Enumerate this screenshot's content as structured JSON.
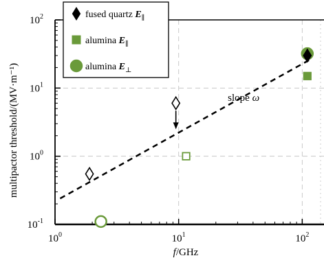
{
  "chart_data": {
    "type": "scatter",
    "x_scale": "log",
    "y_scale": "log",
    "xlim": [
      1,
      150
    ],
    "ylim": [
      0.1,
      100
    ],
    "xlabel": "f/GHz",
    "ylabel": "multipactor threshold/(MV·m⁻¹)",
    "x_ticks": [
      {
        "value": 1,
        "base": "10",
        "exp": "0"
      },
      {
        "value": 10,
        "base": "10",
        "exp": "1"
      },
      {
        "value": 100,
        "base": "10",
        "exp": "2"
      }
    ],
    "y_ticks": [
      {
        "value": 0.1,
        "base": "10",
        "exp": "-1"
      },
      {
        "value": 1,
        "base": "10",
        "exp": "0"
      },
      {
        "value": 10,
        "base": "10",
        "exp": "1"
      },
      {
        "value": 100,
        "base": "10",
        "exp": "2"
      }
    ],
    "grid": true,
    "legend_position": "top-left",
    "legend": [
      {
        "marker": "diamond",
        "color": "#000000",
        "text": "fused quartz ",
        "sym": "E",
        "sub": "∥"
      },
      {
        "marker": "square",
        "color": "#6a9a3a",
        "text": "alumina ",
        "sym": "E",
        "sub": "∥"
      },
      {
        "marker": "circle",
        "color": "#6a9a3a",
        "text": "alumina ",
        "sym": "E",
        "sub": "⊥"
      }
    ],
    "series": [
      {
        "marker": "diamond",
        "color": "#000000",
        "points": [
          {
            "x": 1.9,
            "y": 0.55,
            "filled": false
          },
          {
            "x": 9.5,
            "y": 6.0,
            "filled": false,
            "arrow_down": true
          },
          {
            "x": 110,
            "y": 30,
            "filled": true
          }
        ]
      },
      {
        "marker": "square",
        "color": "#6a9a3a",
        "points": [
          {
            "x": 11.5,
            "y": 1.0,
            "filled": false
          },
          {
            "x": 110,
            "y": 15,
            "filled": true
          }
        ]
      },
      {
        "marker": "circle",
        "color": "#6a9a3a",
        "points": [
          {
            "x": 2.35,
            "y": 0.11,
            "filled": false
          },
          {
            "x": 110,
            "y": 32,
            "filled": true
          }
        ]
      }
    ],
    "fit_line": {
      "x": [
        1.1,
        115
      ],
      "y": [
        0.24,
        26
      ],
      "style": "dashed"
    },
    "annotations": [
      {
        "text": "slope ",
        "symbol": "ω",
        "x": 25,
        "y": 6.5
      }
    ]
  }
}
